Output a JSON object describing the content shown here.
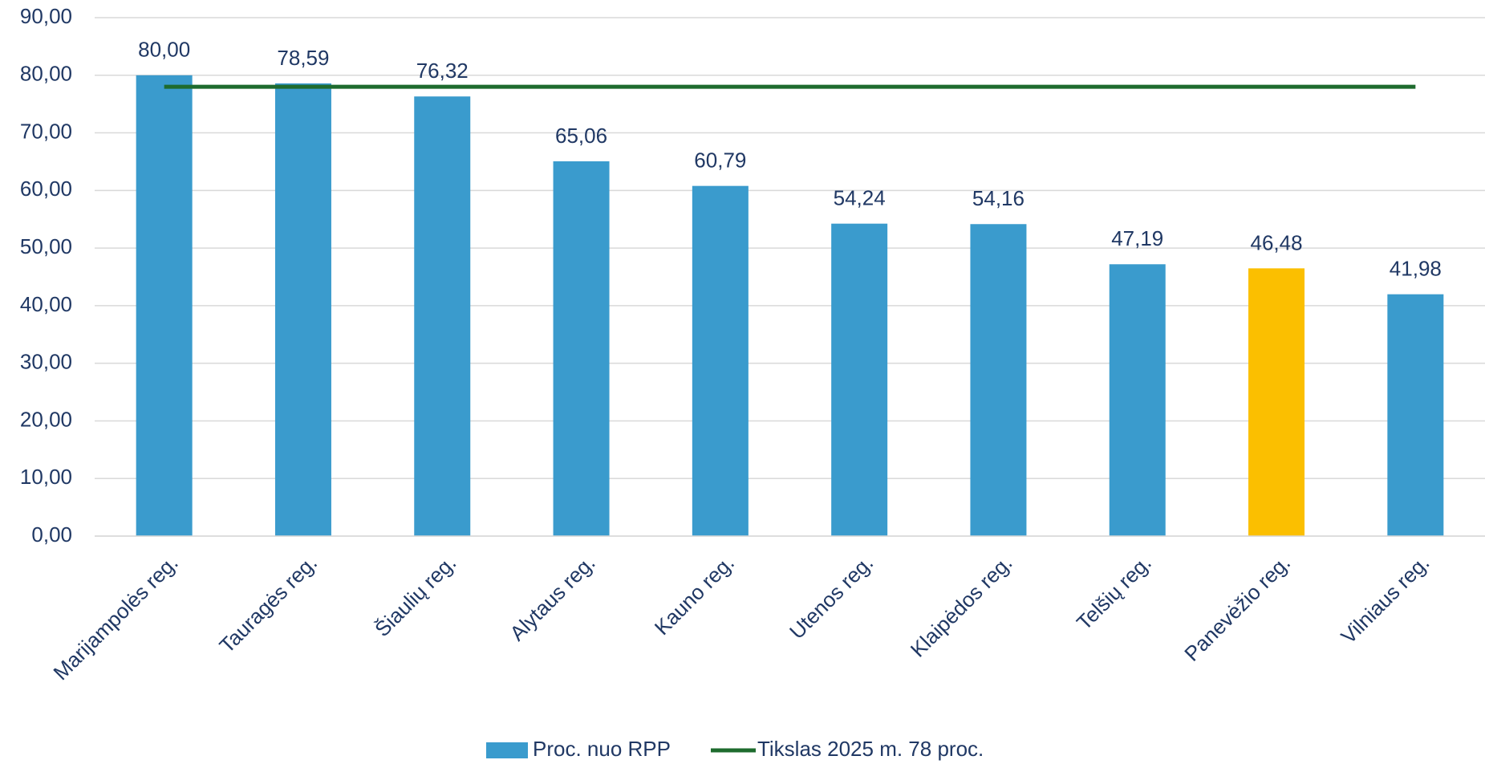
{
  "chart_data": {
    "type": "bar",
    "categories": [
      "Marijampolės reg.",
      "Tauragės reg.",
      "Šiaulių reg.",
      "Alytaus reg.",
      "Kauno reg.",
      "Utenos reg.",
      "Klaipėdos reg.",
      "Telšių reg.",
      "Panevėžio reg.",
      "Vilniaus reg."
    ],
    "series": [
      {
        "name": "Proc. nuo RPP",
        "type": "bar",
        "color": "#3a9bcd",
        "colors": [
          "#3a9bcd",
          "#3a9bcd",
          "#3a9bcd",
          "#3a9bcd",
          "#3a9bcd",
          "#3a9bcd",
          "#3a9bcd",
          "#3a9bcd",
          "#fbbf00",
          "#3a9bcd"
        ],
        "values": [
          80.0,
          78.59,
          76.32,
          65.06,
          60.79,
          54.24,
          54.16,
          47.19,
          46.48,
          41.98
        ],
        "value_labels": [
          "80,00",
          "78,59",
          "76,32",
          "65,06",
          "60,79",
          "54,24",
          "54,16",
          "47,19",
          "46,48",
          "41,98"
        ]
      },
      {
        "name": "Tikslas 2025 m. 78 proc.",
        "type": "line",
        "color": "#1e6b2e",
        "values": [
          78,
          78,
          78,
          78,
          78,
          78,
          78,
          78,
          78,
          78
        ]
      }
    ],
    "ylim": [
      0,
      90
    ],
    "yticks": [
      {
        "value": 0,
        "label": "0,00"
      },
      {
        "value": 10,
        "label": "10,00"
      },
      {
        "value": 20,
        "label": "20,00"
      },
      {
        "value": 30,
        "label": "30,00"
      },
      {
        "value": 40,
        "label": "40,00"
      },
      {
        "value": 50,
        "label": "50,00"
      },
      {
        "value": 60,
        "label": "60,00"
      },
      {
        "value": 70,
        "label": "70,00"
      },
      {
        "value": 80,
        "label": "80,00"
      },
      {
        "value": 90,
        "label": "90,00"
      }
    ],
    "grid": true,
    "legend": "bottom"
  }
}
